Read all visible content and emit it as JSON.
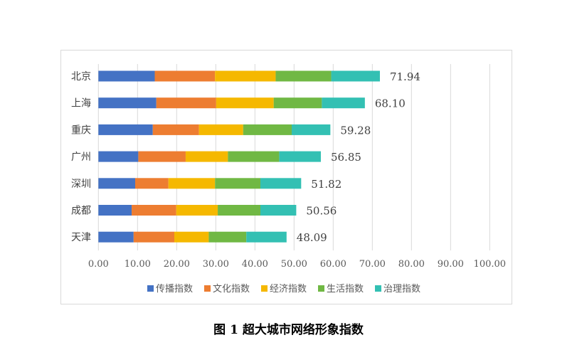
{
  "chart_data": {
    "type": "bar",
    "orientation": "horizontal",
    "stacked": true,
    "title": "图 1  超大城市网络形象指数",
    "categories": [
      "北京",
      "上海",
      "重庆",
      "广州",
      "深圳",
      "成都",
      "天津"
    ],
    "totals": [
      "71.94",
      "68.10",
      "59.28",
      "56.85",
      "51.82",
      "50.56",
      "48.09"
    ],
    "series": [
      {
        "name": "传播指数",
        "color": "#4472c4",
        "values": [
          14.4,
          14.8,
          13.9,
          10.2,
          9.4,
          8.5,
          9.0
        ]
      },
      {
        "name": "文化指数",
        "color": "#ed7d31",
        "values": [
          15.4,
          15.3,
          11.8,
          12.1,
          8.5,
          11.4,
          10.4
        ]
      },
      {
        "name": "经济指数",
        "color": "#f5b800",
        "values": [
          15.5,
          14.7,
          11.3,
          10.8,
          11.9,
          10.6,
          8.8
        ]
      },
      {
        "name": "生活指数",
        "color": "#70b844",
        "values": [
          14.2,
          12.3,
          12.4,
          13.1,
          11.6,
          10.9,
          9.6
        ]
      },
      {
        "name": "治理指数",
        "color": "#33c0b3",
        "values": [
          12.44,
          11.0,
          9.88,
          10.65,
          10.42,
          9.16,
          10.29
        ]
      }
    ],
    "xlim": [
      0,
      100
    ],
    "xticks": [
      "0.00",
      "10.00",
      "20.00",
      "30.00",
      "40.00",
      "50.00",
      "60.00",
      "70.00",
      "80.00",
      "90.00",
      "100.00"
    ],
    "grid": true,
    "legend": "bottom"
  }
}
